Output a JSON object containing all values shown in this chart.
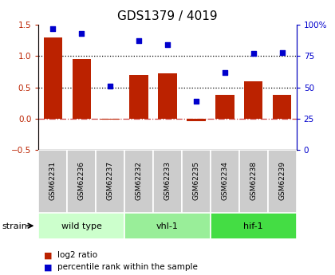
{
  "title": "GDS1379 / 4019",
  "samples": [
    "GSM62231",
    "GSM62236",
    "GSM62237",
    "GSM62232",
    "GSM62233",
    "GSM62235",
    "GSM62234",
    "GSM62238",
    "GSM62239"
  ],
  "log2_ratio": [
    1.3,
    0.95,
    -0.02,
    0.7,
    0.72,
    -0.04,
    0.38,
    0.6,
    0.38
  ],
  "percentile_rank": [
    97,
    93,
    51,
    87,
    84,
    39,
    62,
    77,
    78
  ],
  "bar_color": "#bb2200",
  "dot_color": "#0000cc",
  "ylim_left": [
    -0.5,
    1.5
  ],
  "ylim_right": [
    0,
    100
  ],
  "yticks_left": [
    -0.5,
    0.0,
    0.5,
    1.0,
    1.5
  ],
  "yticks_right": [
    0,
    25,
    50,
    75,
    100
  ],
  "ytick_labels_right": [
    "0",
    "25",
    "50",
    "75",
    "100%"
  ],
  "hlines_dotted": [
    0.5,
    1.0
  ],
  "hline_dashdot": 0.0,
  "groups": [
    {
      "label": "wild type",
      "start": 0,
      "end": 3,
      "color": "#ccffcc"
    },
    {
      "label": "vhl-1",
      "start": 3,
      "end": 6,
      "color": "#99ee99"
    },
    {
      "label": "hif-1",
      "start": 6,
      "end": 9,
      "color": "#44dd44"
    }
  ],
  "sample_box_color": "#cccccc",
  "legend_log2_color": "#bb2200",
  "legend_pct_color": "#0000cc",
  "strain_label": "strain",
  "background_color": "#ffffff",
  "title_fontsize": 11,
  "tick_fontsize": 7.5,
  "bar_width": 0.65
}
